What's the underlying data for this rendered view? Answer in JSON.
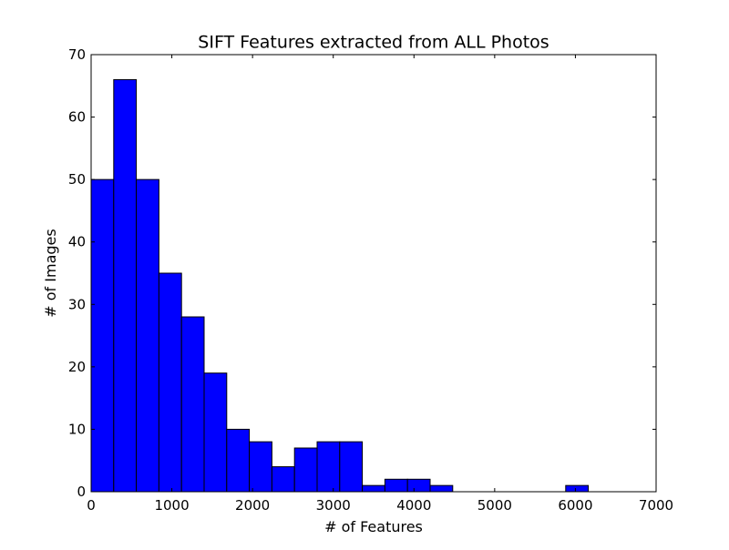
{
  "chart_data": {
    "type": "bar",
    "title": "SIFT Features extracted from ALL Photos",
    "xlabel": "# of Features",
    "ylabel": "# of Images",
    "xlim": [
      0,
      7000
    ],
    "ylim": [
      0,
      70
    ],
    "x_ticks": [
      "0",
      "1000",
      "2000",
      "3000",
      "4000",
      "5000",
      "6000",
      "7000"
    ],
    "y_ticks": [
      "0",
      "10",
      "20",
      "30",
      "40",
      "50",
      "60",
      "70"
    ],
    "bin_edges": [
      0,
      280,
      560,
      840,
      1120,
      1400,
      1680,
      1960,
      2240,
      2520,
      2800,
      3080,
      3360,
      3640,
      3920,
      4200,
      4480,
      4760,
      5040,
      5320,
      5600,
      5880,
      6160
    ],
    "counts": [
      50,
      66,
      50,
      35,
      28,
      19,
      10,
      8,
      4,
      7,
      8,
      8,
      1,
      2,
      2,
      1,
      0,
      0,
      0,
      0,
      0,
      1
    ],
    "bar_color": "#0000ff",
    "edge_color": "#000000",
    "grid": false
  }
}
